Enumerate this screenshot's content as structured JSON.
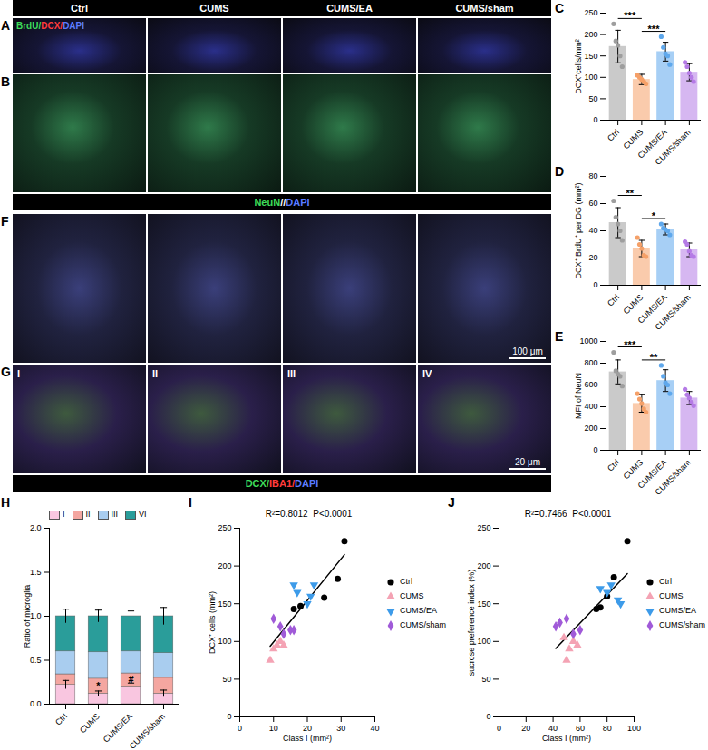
{
  "figure": {
    "column_headers": [
      "Ctrl",
      "CUMS",
      "CUMS/EA",
      "CUMS/sham"
    ],
    "image_rows": [
      {
        "letter": "A",
        "stain_label": [
          {
            "text": "BrdU/",
            "color": "#3ddc5a"
          },
          {
            "text": "DCX/",
            "color": "#ff3b3b"
          },
          {
            "text": "DAPI",
            "color": "#5b7bff"
          }
        ]
      },
      {
        "letter": "B",
        "strip": [
          {
            "text": "NeuN",
            "color": "#3ddc5a"
          },
          {
            "text": "//",
            "color": "#ffffff"
          },
          {
            "text": "DAPI",
            "color": "#5b7bff"
          }
        ]
      },
      {
        "letter": "F",
        "scale_bar": "100 μm"
      },
      {
        "letter": "G",
        "tile_labels": [
          "I",
          "II",
          "III",
          "IV"
        ],
        "scale_bar": "20 μm",
        "strip": [
          {
            "text": "DCX/",
            "color": "#3ddc5a"
          },
          {
            "text": "IBA1/",
            "color": "#ff3b3b"
          },
          {
            "text": "DAPI",
            "color": "#5b7bff"
          }
        ]
      }
    ]
  },
  "chart_data": [
    {
      "panel": "C",
      "type": "bar",
      "categories": [
        "Ctrl",
        "CUMS",
        "CUMS/EA",
        "CUMS/sham"
      ],
      "values": [
        172,
        95,
        160,
        112
      ],
      "errors": [
        38,
        12,
        22,
        20
      ],
      "points": [
        [
          225,
          185,
          175,
          150,
          125
        ],
        [
          105,
          100,
          95,
          90,
          85
        ],
        [
          195,
          170,
          155,
          150,
          130
        ],
        [
          135,
          125,
          110,
          100,
          90
        ]
      ],
      "colors": [
        "#9e9e9e",
        "#f5a068",
        "#5fa8ec",
        "#b57be6"
      ],
      "ylim": [
        0,
        250
      ],
      "yticks": [
        0,
        50,
        100,
        150,
        200,
        250
      ],
      "y_label": "DCX⁺cells/mm²",
      "significance": [
        {
          "from": "Ctrl",
          "to": "CUMS",
          "label": "***"
        },
        {
          "from": "CUMS",
          "to": "CUMS/EA",
          "label": "***"
        }
      ]
    },
    {
      "panel": "D",
      "type": "bar",
      "categories": [
        "Ctrl",
        "CUMS",
        "CUMS/EA",
        "CUMS/sham"
      ],
      "values": [
        46,
        27,
        41,
        26
      ],
      "errors": [
        11,
        6,
        4,
        5
      ],
      "points": [
        [
          62,
          50,
          45,
          40,
          33
        ],
        [
          35,
          30,
          27,
          22,
          21
        ],
        [
          45,
          42,
          41,
          40,
          37
        ],
        [
          32,
          30,
          25,
          22,
          21
        ]
      ],
      "colors": [
        "#9e9e9e",
        "#f5a068",
        "#5fa8ec",
        "#b57be6"
      ],
      "ylim": [
        0,
        80
      ],
      "yticks": [
        0,
        20,
        40,
        60,
        80
      ],
      "y_label": "DCX⁺ BrdU⁺ per DG (mm²)",
      "significance": [
        {
          "from": "Ctrl",
          "to": "CUMS",
          "label": "**"
        },
        {
          "from": "CUMS",
          "to": "CUMS/EA",
          "label": "*"
        }
      ]
    },
    {
      "panel": "E",
      "type": "bar",
      "categories": [
        "Ctrl",
        "CUMS",
        "CUMS/EA",
        "CUMS/sham"
      ],
      "values": [
        720,
        430,
        640,
        480
      ],
      "errors": [
        110,
        80,
        100,
        60
      ],
      "points": [
        [
          900,
          730,
          700,
          680,
          590
        ],
        [
          520,
          470,
          430,
          380,
          350
        ],
        [
          780,
          680,
          620,
          600,
          520
        ],
        [
          560,
          510,
          480,
          440,
          410
        ]
      ],
      "colors": [
        "#9e9e9e",
        "#f5a068",
        "#5fa8ec",
        "#b57be6"
      ],
      "ylim": [
        0,
        1000
      ],
      "yticks": [
        0,
        200,
        400,
        600,
        800,
        1000
      ],
      "y_label": "MFI of NeuN",
      "significance": [
        {
          "from": "Ctrl",
          "to": "CUMS",
          "label": "***"
        },
        {
          "from": "CUMS",
          "to": "CUMS/EA",
          "label": "**"
        }
      ]
    },
    {
      "panel": "H",
      "type": "bar",
      "stacked": true,
      "categories": [
        "Ctrl",
        "CUMS",
        "CUMS/EA",
        "CUMS/sham"
      ],
      "series": [
        {
          "name": "I",
          "color": "#f9c6e0",
          "values": [
            0.22,
            0.12,
            0.2,
            0.12
          ],
          "errors": [
            0.05,
            0.03,
            0.04,
            0.04
          ]
        },
        {
          "name": "II",
          "color": "#f4a6a0",
          "values": [
            0.12,
            0.17,
            0.15,
            0.18
          ]
        },
        {
          "name": "III",
          "color": "#a9cdef",
          "values": [
            0.26,
            0.3,
            0.25,
            0.28
          ]
        },
        {
          "name": "VI",
          "color": "#2a9d9a",
          "values": [
            0.4,
            0.41,
            0.4,
            0.42
          ],
          "errors": [
            0.08,
            0.07,
            0.06,
            0.1
          ]
        }
      ],
      "ylim": [
        0,
        2
      ],
      "yticks": [
        {
          "value": 0,
          "label": "0.0"
        },
        {
          "value": 0.5,
          "label": "0.5"
        },
        {
          "value": 1,
          "label": "1.0"
        },
        {
          "value": 1.5,
          "label": "1.5"
        },
        {
          "value": 2,
          "label": "2.0"
        }
      ],
      "y_label": "Ratio of microglia",
      "legend": "top",
      "annotations": [
        {
          "category": "CUMS",
          "series": "II",
          "text": "*"
        },
        {
          "category": "CUMS/EA",
          "series": "II",
          "text": "#"
        }
      ]
    },
    {
      "panel": "I",
      "type": "regression",
      "title": "R²=0.8012  P<0.0001",
      "x_label": "Class I (mm²)",
      "y_label": "DCX⁺ cells (mm²)",
      "xlim": [
        0,
        40
      ],
      "xticks": [
        0,
        10,
        20,
        30,
        40
      ],
      "ylim": [
        0,
        250
      ],
      "yticks": [
        0,
        50,
        100,
        150,
        200,
        250
      ],
      "legend": "right",
      "series": [
        {
          "name": "Ctrl",
          "color": "#000000",
          "marker": "circle",
          "x": [
            31,
            29,
            25,
            16,
            18
          ],
          "y": [
            233,
            183,
            158,
            143,
            147
          ]
        },
        {
          "name": "CUMS",
          "color": "#f4a3b4",
          "marker": "triangle",
          "x": [
            9,
            10,
            11,
            12,
            13
          ],
          "y": [
            75,
            90,
            95,
            100,
            95
          ]
        },
        {
          "name": "CUMS/EA",
          "color": "#3d9be9",
          "marker": "triangle-down",
          "x": [
            16,
            17,
            20,
            22,
            21
          ],
          "y": [
            175,
            165,
            150,
            175,
            160
          ]
        },
        {
          "name": "CUMS/sham",
          "color": "#a05ad8",
          "marker": "diamond",
          "x": [
            10,
            12,
            13,
            15,
            16
          ],
          "y": [
            130,
            120,
            110,
            115,
            115
          ]
        }
      ]
    },
    {
      "panel": "J",
      "type": "regression",
      "title": "R²=0.7466  P<0.0001",
      "x_label": "Class I (mm²)",
      "y_label": "sucrose preference index (%)",
      "xlim": [
        0,
        100
      ],
      "xticks": [
        0,
        20,
        40,
        60,
        80,
        100
      ],
      "ylim": [
        0,
        250
      ],
      "yticks": [
        0,
        50,
        100,
        150,
        200,
        250
      ],
      "legend": "right",
      "series": [
        {
          "name": "Ctrl",
          "color": "#000000",
          "marker": "circle",
          "x": [
            95,
            85,
            80,
            75,
            72
          ],
          "y": [
            233,
            185,
            160,
            145,
            143
          ]
        },
        {
          "name": "CUMS",
          "color": "#f4a3b4",
          "marker": "triangle",
          "x": [
            50,
            52,
            55,
            48,
            58
          ],
          "y": [
            75,
            90,
            100,
            105,
            95
          ]
        },
        {
          "name": "CUMS/EA",
          "color": "#3d9be9",
          "marker": "triangle-down",
          "x": [
            75,
            80,
            88,
            90,
            83
          ],
          "y": [
            170,
            165,
            155,
            150,
            175
          ]
        },
        {
          "name": "CUMS/sham",
          "color": "#a05ad8",
          "marker": "diamond",
          "x": [
            45,
            50,
            55,
            60,
            42
          ],
          "y": [
            125,
            130,
            110,
            115,
            120
          ]
        }
      ]
    }
  ]
}
